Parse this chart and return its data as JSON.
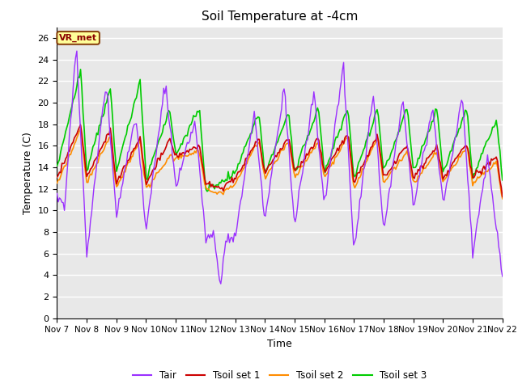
{
  "title": "Soil Temperature at -4cm",
  "xlabel": "Time",
  "ylabel": "Temperature (C)",
  "ylim": [
    0,
    27
  ],
  "yticks": [
    0,
    2,
    4,
    6,
    8,
    10,
    12,
    14,
    16,
    18,
    20,
    22,
    24,
    26
  ],
  "x_labels": [
    "Nov 7",
    "Nov 8",
    "Nov 9",
    "Nov 10",
    "Nov 11",
    "Nov 12",
    "Nov 13",
    "Nov 14",
    "Nov 15",
    "Nov 16",
    "Nov 17",
    "Nov 18",
    "Nov 19",
    "Nov 20",
    "Nov 21",
    "Nov 22"
  ],
  "colors": {
    "Tair": "#9B30FF",
    "Tsoil1": "#CC0000",
    "Tsoil2": "#FF8C00",
    "Tsoil3": "#00CC00"
  },
  "bg_color": "#E8E8E8",
  "annotation_text": "VR_met",
  "annotation_box_color": "#FFFF99",
  "annotation_text_color": "#8B0000",
  "annotation_box_edge": "#8B4513"
}
